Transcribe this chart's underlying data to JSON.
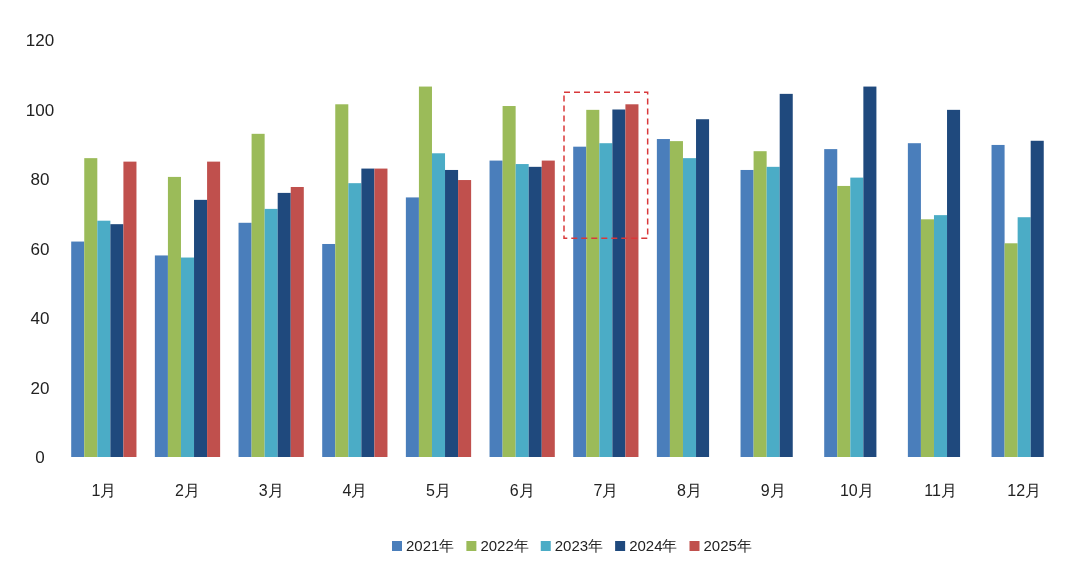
{
  "chart_data": {
    "type": "bar",
    "categories": [
      "1月",
      "2月",
      "3月",
      "4月",
      "5月",
      "6月",
      "7月",
      "8月",
      "9月",
      "10月",
      "11月",
      "12月"
    ],
    "series": [
      {
        "name": "2021年",
        "color": "#4a7ebb",
        "values": [
          62,
          58,
          67.4,
          61.3,
          74.7,
          85.3,
          89.3,
          91.5,
          82.6,
          88.6,
          90.3,
          89.8
        ]
      },
      {
        "name": "2022年",
        "color": "#9bbb59",
        "values": [
          86,
          80.6,
          93,
          101.5,
          106.6,
          101,
          99.9,
          90.9,
          88,
          78,
          68.4,
          61.5
        ]
      },
      {
        "name": "2023年",
        "color": "#4bacc6",
        "values": [
          68,
          57.4,
          71.4,
          78.8,
          87.4,
          84.3,
          90.3,
          86,
          83.5,
          80.4,
          69.6,
          69
        ]
      },
      {
        "name": "2024年",
        "color": "#1f497d",
        "values": [
          67,
          74,
          76,
          83,
          82.6,
          83.5,
          100,
          97.2,
          104.5,
          106.6,
          99.9,
          91
        ]
      },
      {
        "name": "2025年",
        "color": "#c0504d",
        "values": [
          85,
          85,
          77.7,
          83,
          79.7,
          85.3,
          101.5,
          null,
          null,
          null,
          null,
          null
        ]
      }
    ],
    "ylim": [
      0,
      120
    ],
    "yticks": [
      0,
      20,
      40,
      60,
      80,
      100,
      120
    ],
    "legend": "bottom",
    "grid": false
  }
}
